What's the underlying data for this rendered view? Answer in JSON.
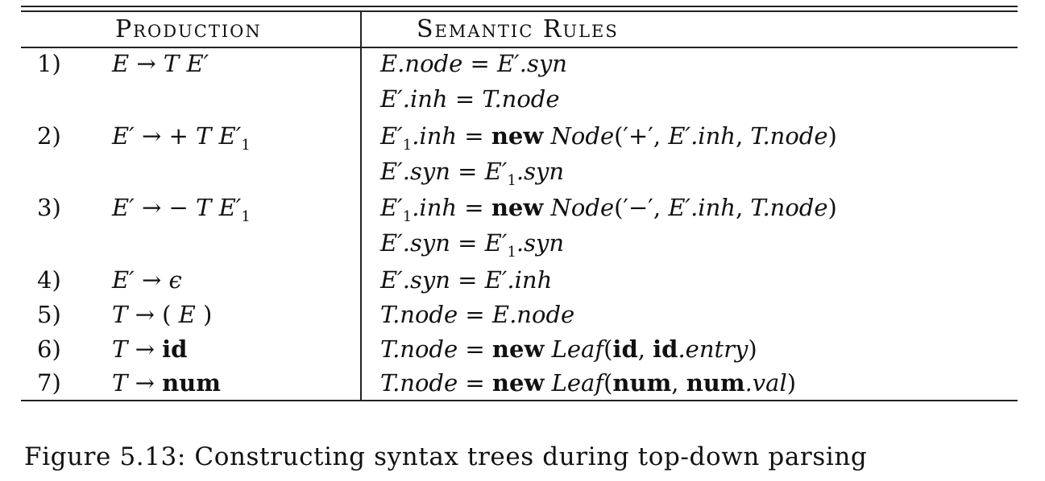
{
  "table": {
    "headers": {
      "production": "Production",
      "semantic_rules": "Semantic Rules"
    },
    "rows": [
      {
        "num": "1)",
        "production": "E → T E′",
        "rules": [
          "E.node = E′.syn",
          "E′.inh = T.node"
        ]
      },
      {
        "num": "2)",
        "production": "E′ → + T E′1",
        "rules": [
          "E′1.inh = new Node(′+′, E′.inh, T.node)",
          "E′.syn = E′1.syn"
        ]
      },
      {
        "num": "3)",
        "production": "E′ → − T E′1",
        "rules": [
          "E′1.inh = new Node(′−′, E′.inh, T.node)",
          "E′.syn = E′1.syn"
        ]
      },
      {
        "num": "4)",
        "production": "E′ → ϵ",
        "rules": [
          "E′.syn = E′.inh"
        ]
      },
      {
        "num": "5)",
        "production": "T → ( E )",
        "rules": [
          "T.node = E.node"
        ]
      },
      {
        "num": "6)",
        "production": "T → id",
        "rules": [
          "T.node = new Leaf(id, id.entry)"
        ]
      },
      {
        "num": "7)",
        "production": "T → num",
        "rules": [
          "T.node = new Leaf(num, num.val)"
        ]
      }
    ]
  },
  "caption": "Figure 5.13: Constructing syntax trees during top-down parsing"
}
